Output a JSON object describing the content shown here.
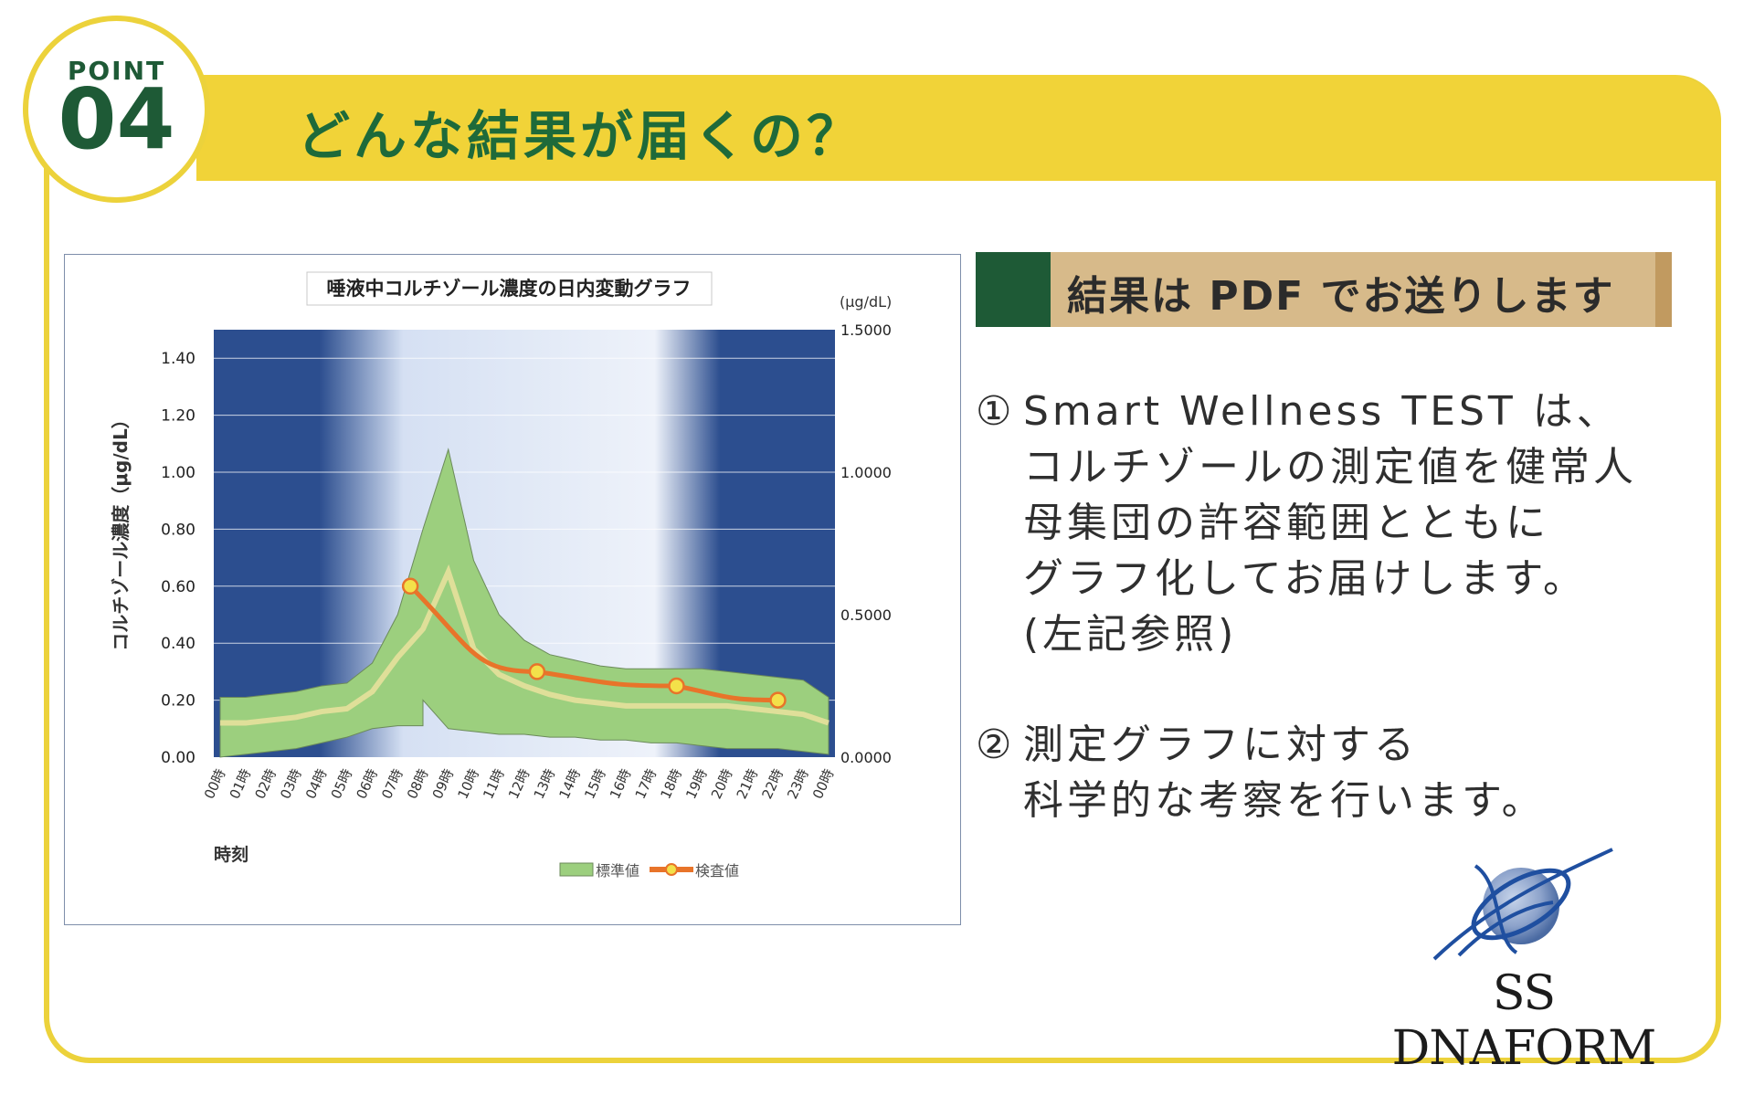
{
  "badge": {
    "word": "POINT",
    "number": "04"
  },
  "title": "どんな結果が届くの？",
  "result_heading": "結果は PDF でお送りします",
  "points": [
    {
      "number": "①",
      "lines": [
        "Smart Wellness TEST は、",
        "コルチゾールの測定値を健常人",
        "母集団の許容範囲とともに",
        "グラフ化してお届けします。",
        "(左記参照)"
      ]
    },
    {
      "number": "②",
      "lines": [
        "測定グラフに対する",
        "科学的な考察を行います。"
      ]
    }
  ],
  "logo_text": "SS DNAFORM",
  "colors": {
    "green": "#1e5a36",
    "yellow": "#f1d338",
    "tan": "#d7ba8a",
    "navy": "#2a4a8c",
    "band": "#9ccf7e",
    "measured": "#e8742a"
  },
  "chart_data": {
    "type": "area",
    "title": "唾液中コルチゾール濃度の日内変動グラフ",
    "xlabel": "時刻",
    "ylabel": "コルチゾール濃度（μg/dL）",
    "y2_unit": "(μg/dL)",
    "ylim": [
      0,
      1.5
    ],
    "y_ticks": [
      "0.00",
      "0.20",
      "0.40",
      "0.60",
      "0.80",
      "1.00",
      "1.20",
      "1.40"
    ],
    "y2_ticks": [
      "0.0000",
      "0.5000",
      "1.0000",
      "1.5000"
    ],
    "categories": [
      "00時",
      "01時",
      "02時",
      "03時",
      "04時",
      "05時",
      "06時",
      "07時",
      "08時",
      "09時",
      "10時",
      "11時",
      "12時",
      "13時",
      "14時",
      "15時",
      "16時",
      "17時",
      "18時",
      "19時",
      "20時",
      "21時",
      "22時",
      "23時",
      "00時"
    ],
    "legend": [
      "標準値",
      "検査値"
    ],
    "grid": true,
    "standard_upper": [
      0.21,
      0.21,
      0.22,
      0.23,
      0.25,
      0.26,
      0.33,
      0.5,
      0.8,
      1.08,
      0.69,
      0.5,
      0.41,
      0.36,
      0.34,
      0.32,
      0.31,
      0.31,
      0.31,
      0.31,
      0.3,
      0.29,
      0.28,
      0.27,
      0.21
    ],
    "standard_lower": [
      0.0,
      0.01,
      0.02,
      0.03,
      0.05,
      0.07,
      0.1,
      0.11,
      0.11,
      0.1,
      0.09,
      0.08,
      0.08,
      0.07,
      0.07,
      0.06,
      0.06,
      0.05,
      0.05,
      0.04,
      0.03,
      0.03,
      0.03,
      0.02,
      0.01
    ],
    "standard_lower_peak": [
      {
        "x": 8,
        "y": 0.2
      }
    ],
    "standard_mean": [
      0.12,
      0.12,
      0.13,
      0.14,
      0.16,
      0.17,
      0.23,
      0.35,
      0.45,
      0.65,
      0.38,
      0.29,
      0.25,
      0.22,
      0.2,
      0.19,
      0.18,
      0.18,
      0.18,
      0.18,
      0.18,
      0.17,
      0.16,
      0.15,
      0.12
    ],
    "measured": [
      {
        "x": 7.5,
        "y": 0.6
      },
      {
        "x": 12.5,
        "y": 0.3
      },
      {
        "x": 18,
        "y": 0.25
      },
      {
        "x": 22,
        "y": 0.2
      }
    ]
  }
}
